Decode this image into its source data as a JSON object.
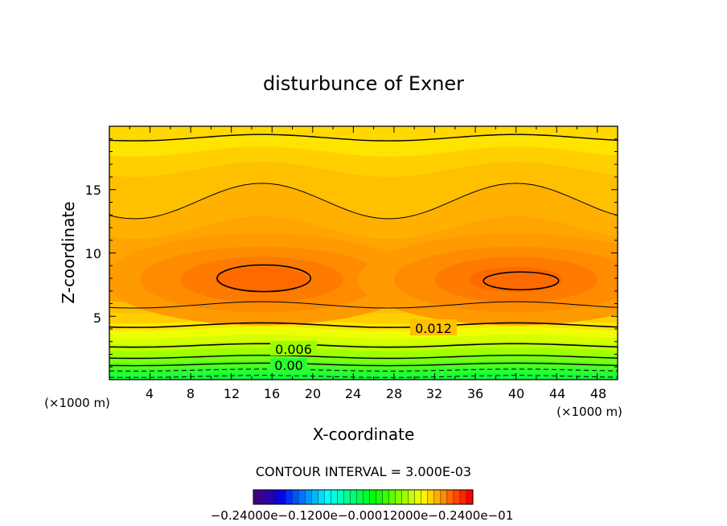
{
  "chart_data": {
    "type": "contour",
    "title": "disturbunce of Exner",
    "xlabel": "X-coordinate",
    "ylabel": "Z-coordinate",
    "x_unit": "(×1000 m)",
    "y_unit": "(×1000 m)",
    "xlim": [
      0,
      50
    ],
    "ylim": [
      0,
      20
    ],
    "xticks": [
      "4",
      "8",
      "12",
      "16",
      "20",
      "24",
      "28",
      "32",
      "36",
      "40",
      "44",
      "48"
    ],
    "yticks": [
      "5",
      "10",
      "15"
    ],
    "contour_labels": [
      "0.012",
      "0.006",
      "0.00"
    ],
    "contour_interval_text": "CONTOUR INTERVAL = 3.000E-03",
    "colorbar_labels": [
      "−0.2400e−01",
      "−0.1200e−01",
      "0.0000",
      "0.1200e−01",
      "0.2400e−01"
    ],
    "colorbar_text": "−0.24000e−0.1200e−0.00012000e−0.2400e−01",
    "colors": {
      "band_high": "#ff6a00",
      "band_mid": "#ffa200",
      "band_top": "#ffd800",
      "band_yellow": "#fff000",
      "band_lime": "#c8ff00",
      "band_green": "#00ff40",
      "contour": "#000000"
    }
  }
}
